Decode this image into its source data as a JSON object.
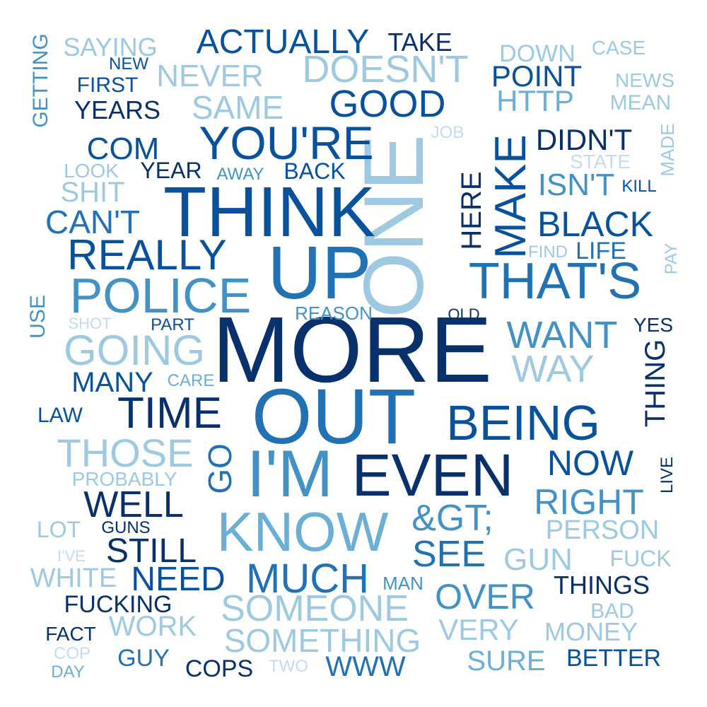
{
  "colors": {
    "c1": "#08306b",
    "c2": "#08519c",
    "c3": "#2171b5",
    "c4": "#4292c6",
    "c5": "#6baed6",
    "c6": "#9ecae1",
    "c7": "#c6dbef"
  },
  "words": [
    {
      "text": "MORE",
      "color": "c1"
    },
    {
      "text": "OUT",
      "color": "c3"
    },
    {
      "text": "ONE",
      "color": "c6"
    },
    {
      "text": "THINK",
      "color": "c2"
    },
    {
      "text": "UP",
      "color": "c3"
    },
    {
      "text": "I'M",
      "color": "c4"
    },
    {
      "text": "EVEN",
      "color": "c1"
    },
    {
      "text": "KNOW",
      "color": "c5"
    },
    {
      "text": "YOU'RE",
      "color": "c2"
    },
    {
      "text": "POLICE",
      "color": "c4"
    },
    {
      "text": "THAT'S",
      "color": "c3"
    },
    {
      "text": "MAKE",
      "color": "c2"
    },
    {
      "text": "BEING",
      "color": "c2"
    },
    {
      "text": "TIME",
      "color": "c1"
    },
    {
      "text": "REALLY",
      "color": "c2"
    },
    {
      "text": "GOING",
      "color": "c6"
    },
    {
      "text": "THOSE",
      "color": "c6"
    },
    {
      "text": "SOMEONE",
      "color": "c6"
    },
    {
      "text": "MUCH",
      "color": "c3"
    },
    {
      "text": "WANT",
      "color": "c4"
    },
    {
      "text": "WAY",
      "color": "c6"
    },
    {
      "text": "GOOD",
      "color": "c2"
    },
    {
      "text": "DOESN'T",
      "color": "c6"
    },
    {
      "text": "ACTUALLY",
      "color": "c2"
    },
    {
      "text": "WELL",
      "color": "c1"
    },
    {
      "text": "RIGHT",
      "color": "c4"
    },
    {
      "text": "&GT;",
      "color": "c4"
    },
    {
      "text": "SEE",
      "color": "c3"
    },
    {
      "text": "SOMETHING",
      "color": "c6"
    },
    {
      "text": "STILL",
      "color": "c1"
    },
    {
      "text": "NEED",
      "color": "c2"
    },
    {
      "text": "OVER",
      "color": "c4"
    },
    {
      "text": "NOW",
      "color": "c2"
    },
    {
      "text": "BLACK",
      "color": "c2"
    },
    {
      "text": "CAN'T",
      "color": "c3"
    },
    {
      "text": "SAME",
      "color": "c6"
    },
    {
      "text": "NEVER",
      "color": "c6"
    },
    {
      "text": "GUN",
      "color": "c6"
    },
    {
      "text": "GO",
      "color": "c3"
    },
    {
      "text": "HERE",
      "color": "c1"
    },
    {
      "text": "THING",
      "color": "c1"
    },
    {
      "text": "COM",
      "color": "c2"
    },
    {
      "text": "SHIT",
      "color": "c6"
    },
    {
      "text": "MANY",
      "color": "c2"
    },
    {
      "text": "ISN'T",
      "color": "c4"
    },
    {
      "text": "DIDN'T",
      "color": "c1"
    },
    {
      "text": "HTTP",
      "color": "c5"
    },
    {
      "text": "POINT",
      "color": "c2"
    },
    {
      "text": "WORK",
      "color": "c6"
    },
    {
      "text": "VERY",
      "color": "c6"
    },
    {
      "text": "PERSON",
      "color": "c6"
    },
    {
      "text": "THINGS",
      "color": "c1"
    },
    {
      "text": "WWW",
      "color": "c3"
    },
    {
      "text": "SURE",
      "color": "c5"
    },
    {
      "text": "MONEY",
      "color": "c6"
    },
    {
      "text": "WHITE",
      "color": "c6"
    },
    {
      "text": "FUCKING",
      "color": "c1"
    },
    {
      "text": "COPS",
      "color": "c1"
    },
    {
      "text": "YEARS",
      "color": "c1"
    },
    {
      "text": "SAYING",
      "color": "c6"
    },
    {
      "text": "TAKE",
      "color": "c1"
    },
    {
      "text": "DOWN",
      "color": "c6"
    },
    {
      "text": "LIFE",
      "color": "c3"
    },
    {
      "text": "BETTER",
      "color": "c2"
    },
    {
      "text": "FUCK",
      "color": "c6"
    },
    {
      "text": "BACK",
      "color": "c2"
    },
    {
      "text": "YEAR",
      "color": "c1"
    },
    {
      "text": "GUY",
      "color": "c3"
    },
    {
      "text": "LOT",
      "color": "c6"
    },
    {
      "text": "LAW",
      "color": "c2"
    },
    {
      "text": "PROBABLY",
      "color": "c6"
    },
    {
      "text": "BAD",
      "color": "c6"
    },
    {
      "text": "FIRST",
      "color": "c2"
    },
    {
      "text": "USE",
      "color": "c4"
    },
    {
      "text": "CASE",
      "color": "c6"
    },
    {
      "text": "NEWS",
      "color": "c6"
    },
    {
      "text": "MEAN",
      "color": "c6"
    },
    {
      "text": "REASON",
      "color": "c4"
    },
    {
      "text": "LOOK",
      "color": "c6"
    },
    {
      "text": "STATE",
      "color": "c7"
    },
    {
      "text": "FIND",
      "color": "c6"
    },
    {
      "text": "MAN",
      "color": "c4"
    },
    {
      "text": "FACT",
      "color": "c1"
    },
    {
      "text": "GETTING",
      "color": "c4"
    },
    {
      "text": "YES",
      "color": "c1"
    },
    {
      "text": "JOB",
      "color": "c7"
    },
    {
      "text": "MADE",
      "color": "c6"
    },
    {
      "text": "PAY",
      "color": "c6"
    },
    {
      "text": "LIVE",
      "color": "c1"
    },
    {
      "text": "CARE",
      "color": "c5"
    },
    {
      "text": "PART",
      "color": "c2"
    },
    {
      "text": "GUNS",
      "color": "c1"
    },
    {
      "text": "AWAY",
      "color": "c4"
    },
    {
      "text": "KILL",
      "color": "c2"
    },
    {
      "text": "NEW",
      "color": "c2"
    },
    {
      "text": "OLD",
      "color": "c1"
    },
    {
      "text": "SHOT",
      "color": "c7"
    },
    {
      "text": "I'VE",
      "color": "c7"
    },
    {
      "text": "TWO",
      "color": "c7"
    },
    {
      "text": "COP",
      "color": "c7"
    },
    {
      "text": "DAY",
      "color": "c5"
    }
  ]
}
